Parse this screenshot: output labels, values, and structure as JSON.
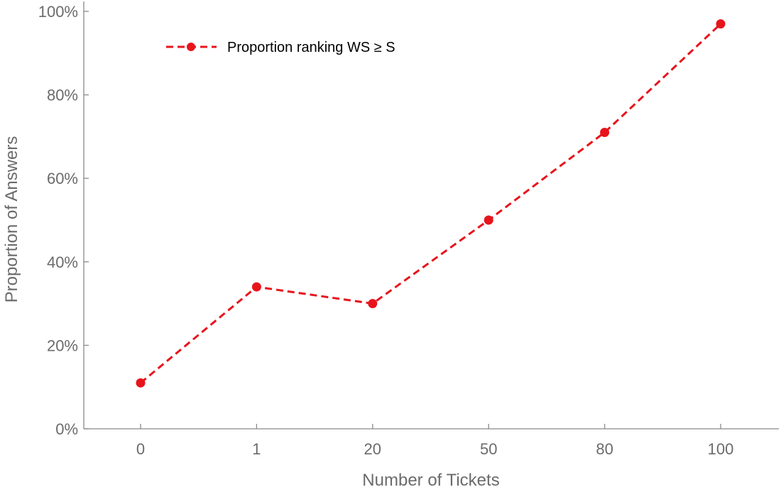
{
  "chart_data": {
    "type": "line",
    "categories": [
      "0",
      "1",
      "20",
      "50",
      "80",
      "100"
    ],
    "series": [
      {
        "name": "Proportion ranking WS ≥ S",
        "values": [
          11,
          34,
          30,
          50,
          71,
          97
        ],
        "color": "#e8141c",
        "line_style": "dashed",
        "marker": "circle"
      }
    ],
    "xlabel": "Number of Tickets",
    "ylabel": "Proportion of Answers",
    "ylim": [
      0,
      100
    ],
    "yticks": [
      0,
      20,
      40,
      60,
      80,
      100
    ],
    "ytick_labels": [
      "0%",
      "20%",
      "40%",
      "60%",
      "80%",
      "100%"
    ],
    "grid": false,
    "legend_position": "top-left"
  }
}
